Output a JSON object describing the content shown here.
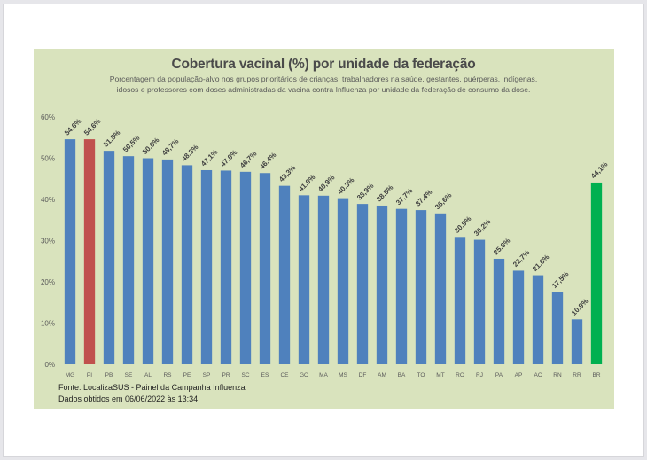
{
  "chart_data": {
    "type": "bar",
    "title": "Cobertura vacinal (%) por unidade da federação",
    "subtitle_lines": [
      "Porcentagem da população-alvo nos grupos prioritários de crianças, trabalhadores na saúde, gestantes, puérperas, indígenas,",
      "idosos e professores com doses administradas da vacina contra Influenza por unidade da federação de consumo da dose."
    ],
    "xlabel": "",
    "ylabel": "",
    "ylim": [
      0,
      60
    ],
    "yticks": [
      0,
      10,
      20,
      30,
      40,
      50,
      60
    ],
    "ytick_labels": [
      "0%",
      "10%",
      "20%",
      "30%",
      "40%",
      "50%",
      "60%"
    ],
    "grid": false,
    "legend": "none",
    "categories": [
      "MG",
      "PI",
      "PB",
      "SE",
      "AL",
      "RS",
      "PE",
      "SP",
      "PR",
      "SC",
      "ES",
      "CE",
      "GO",
      "MA",
      "MS",
      "DF",
      "AM",
      "BA",
      "TO",
      "MT",
      "RO",
      "RJ",
      "PA",
      "AP",
      "AC",
      "RN",
      "RR",
      "BR"
    ],
    "values": [
      54.6,
      54.6,
      51.8,
      50.5,
      50.0,
      49.7,
      48.3,
      47.1,
      47.0,
      46.7,
      46.4,
      43.3,
      41.0,
      40.9,
      40.3,
      38.9,
      38.5,
      37.7,
      37.4,
      36.6,
      30.9,
      30.2,
      25.6,
      22.7,
      21.6,
      17.5,
      10.9,
      44.1
    ],
    "data_labels": [
      "54,6%",
      "54,6%",
      "51,8%",
      "50,5%",
      "50,0%",
      "49,7%",
      "48,3%",
      "47,1%",
      "47,0%",
      "46,7%",
      "46,4%",
      "43,3%",
      "41,0%",
      "40,9%",
      "40,3%",
      "38,9%",
      "38,5%",
      "37,7%",
      "37,4%",
      "36,6%",
      "30,9%",
      "30,2%",
      "25,6%",
      "22,7%",
      "21,6%",
      "17,5%",
      "10,9%",
      "44,1%"
    ],
    "highlights": {
      "PI": "#c0504d",
      "BR": "#00b050"
    },
    "default_color": "#4f81bd"
  },
  "footer": {
    "source": "Fonte: LocalizaSUS - Painel da Campanha Influenza",
    "date": "Dados obtidos em 06/06/2022 às 13:34"
  },
  "colors": {
    "panel_background": "#d9e3bd",
    "bar_default": "#4f81bd",
    "bar_highlight_state": "#c0504d",
    "bar_national": "#00b050"
  }
}
